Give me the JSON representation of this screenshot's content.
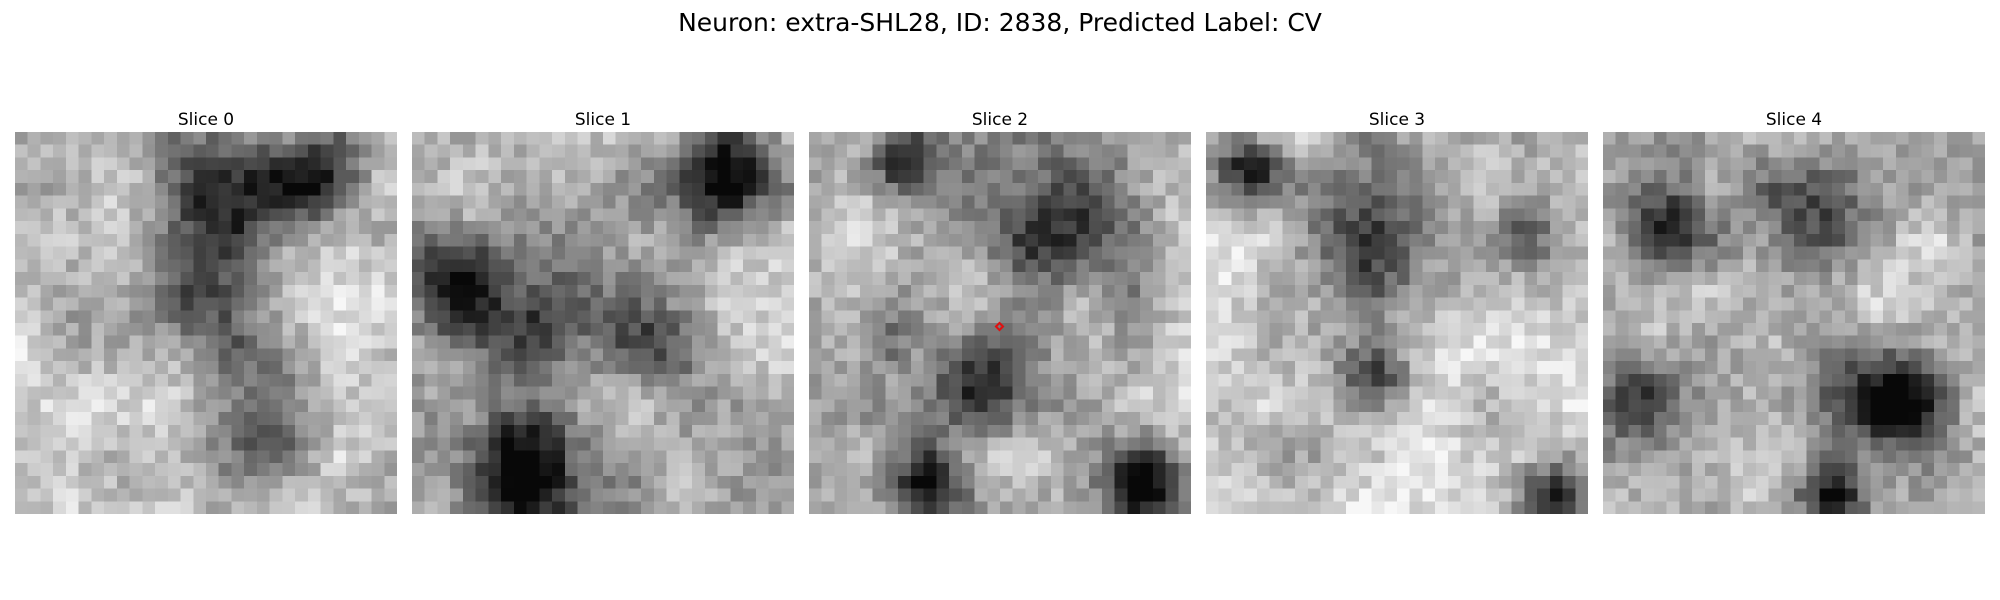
{
  "figure": {
    "title": "Neuron: extra-SHL28, ID: 2838, Predicted Label: CV"
  },
  "slices": [
    {
      "label": "Slice 0",
      "seed": 11,
      "blobs": [
        [
          0.55,
          0.15,
          0.22,
          0.55
        ],
        [
          0.78,
          0.12,
          0.16,
          0.6
        ],
        [
          0.5,
          0.45,
          0.25,
          0.35
        ],
        [
          0.6,
          0.78,
          0.2,
          0.35
        ]
      ],
      "base": 0.78
    },
    {
      "label": "Slice 1",
      "seed": 23,
      "blobs": [
        [
          0.3,
          0.88,
          0.2,
          0.85
        ],
        [
          0.12,
          0.4,
          0.18,
          0.65
        ],
        [
          0.8,
          0.12,
          0.18,
          0.7
        ],
        [
          0.35,
          0.5,
          0.18,
          0.45
        ],
        [
          0.6,
          0.55,
          0.15,
          0.35
        ]
      ],
      "base": 0.72
    },
    {
      "label": "Slice 2",
      "seed": 37,
      "blobs": [
        [
          0.45,
          0.65,
          0.17,
          0.6
        ],
        [
          0.25,
          0.08,
          0.12,
          0.6
        ],
        [
          0.65,
          0.25,
          0.25,
          0.45
        ],
        [
          0.32,
          0.92,
          0.13,
          0.65
        ],
        [
          0.88,
          0.92,
          0.14,
          0.7
        ],
        [
          0.2,
          0.55,
          0.1,
          0.35
        ]
      ],
      "base": 0.72,
      "marker": [
        0.5,
        0.5
      ]
    },
    {
      "label": "Slice 3",
      "seed": 41,
      "blobs": [
        [
          0.12,
          0.1,
          0.12,
          0.75
        ],
        [
          0.45,
          0.24,
          0.3,
          0.5
        ],
        [
          0.44,
          0.65,
          0.12,
          0.55
        ],
        [
          0.92,
          0.95,
          0.12,
          0.6
        ],
        [
          0.84,
          0.27,
          0.12,
          0.5
        ]
      ],
      "base": 0.8
    },
    {
      "label": "Slice 4",
      "seed": 53,
      "blobs": [
        [
          0.75,
          0.7,
          0.18,
          0.75
        ],
        [
          0.6,
          0.95,
          0.12,
          0.7
        ],
        [
          0.17,
          0.22,
          0.18,
          0.5
        ],
        [
          0.55,
          0.2,
          0.2,
          0.4
        ],
        [
          0.1,
          0.7,
          0.14,
          0.45
        ]
      ],
      "base": 0.75
    }
  ]
}
